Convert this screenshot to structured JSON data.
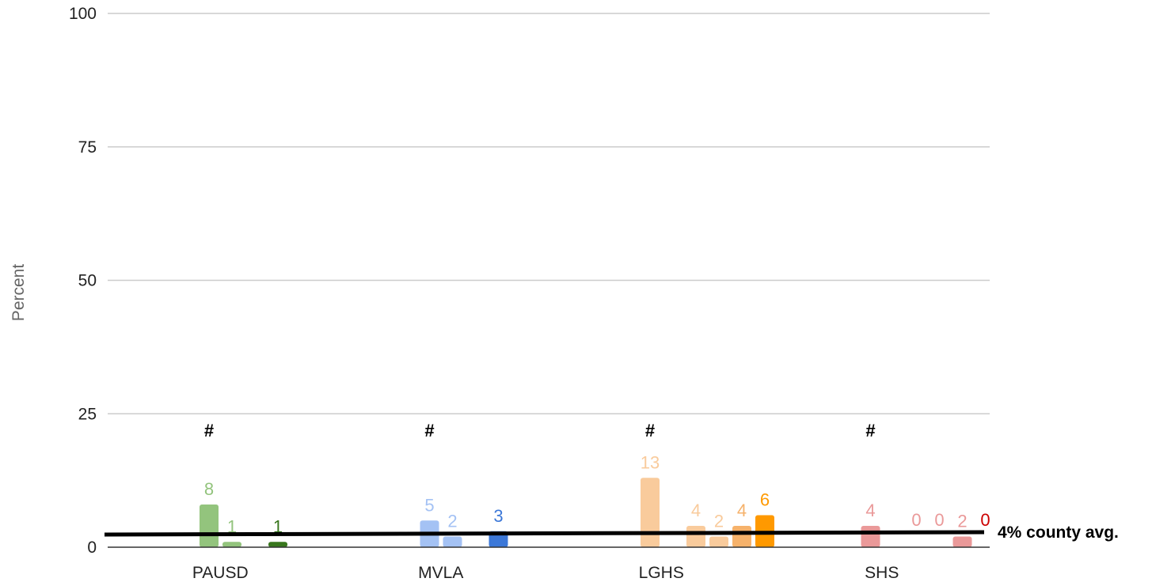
{
  "chart_data": {
    "type": "bar",
    "ylabel": "Percent",
    "xlabel": "",
    "ylim": [
      0,
      100
    ],
    "yticks": [
      "0",
      "25",
      "50",
      "75",
      "100"
    ],
    "grid": true,
    "categories": [
      {
        "name": "PAUSD",
        "marker": "#",
        "bars": [
          {
            "slot": 0,
            "value": 8,
            "label": "8",
            "color": "#93c47d",
            "label_color": "#93c47d"
          },
          {
            "slot": 1,
            "value": 1,
            "label": "1",
            "color": "#93c47d",
            "label_color": "#93c47d"
          },
          {
            "slot": 3,
            "value": 1,
            "label": "1",
            "color": "#38761d",
            "label_color": "#38761d"
          }
        ]
      },
      {
        "name": "MVLA",
        "marker": "#",
        "bars": [
          {
            "slot": 0,
            "value": 5,
            "label": "5",
            "color": "#a4c2f4",
            "label_color": "#a4c2f4"
          },
          {
            "slot": 1,
            "value": 2,
            "label": "2",
            "color": "#a4c2f4",
            "label_color": "#a4c2f4"
          },
          {
            "slot": 3,
            "value": 3,
            "label": "3",
            "color": "#3c78d8",
            "label_color": "#3c78d8"
          }
        ]
      },
      {
        "name": "LGHS",
        "marker": "#",
        "bars": [
          {
            "slot": 0,
            "value": 13,
            "label": "13",
            "color": "#f9cb9c",
            "label_color": "#f9cb9c"
          },
          {
            "slot": 2,
            "value": 4,
            "label": "4",
            "color": "#f9cb9c",
            "label_color": "#f9cb9c"
          },
          {
            "slot": 3,
            "value": 2,
            "label": "2",
            "color": "#f9cb9c",
            "label_color": "#f9cb9c"
          },
          {
            "slot": 4,
            "value": 4,
            "label": "4",
            "color": "#f6b26b",
            "label_color": "#f6b26b"
          },
          {
            "slot": 5,
            "value": 6,
            "label": "6",
            "color": "#ff9900",
            "label_color": "#ff9900"
          }
        ]
      },
      {
        "name": "SHS",
        "marker": "#",
        "bars": [
          {
            "slot": 0,
            "value": 4,
            "label": "4",
            "color": "#ea9999",
            "label_color": "#ea9999"
          },
          {
            "slot": 2,
            "value": 0,
            "label": "0",
            "color": "#ea9999",
            "label_color": "#ea9999"
          },
          {
            "slot": 3,
            "value": 0,
            "label": "0",
            "color": "#ea9999",
            "label_color": "#ea9999"
          },
          {
            "slot": 4,
            "value": 2,
            "label": "2",
            "color": "#ea9999",
            "label_color": "#ea9999"
          },
          {
            "slot": 5,
            "value": 0,
            "label": "0",
            "color": "#cc0000",
            "label_color": "#cc0000"
          }
        ]
      }
    ],
    "reference_line": {
      "value": 4,
      "label": "4% county avg.",
      "color": "#000000"
    }
  }
}
